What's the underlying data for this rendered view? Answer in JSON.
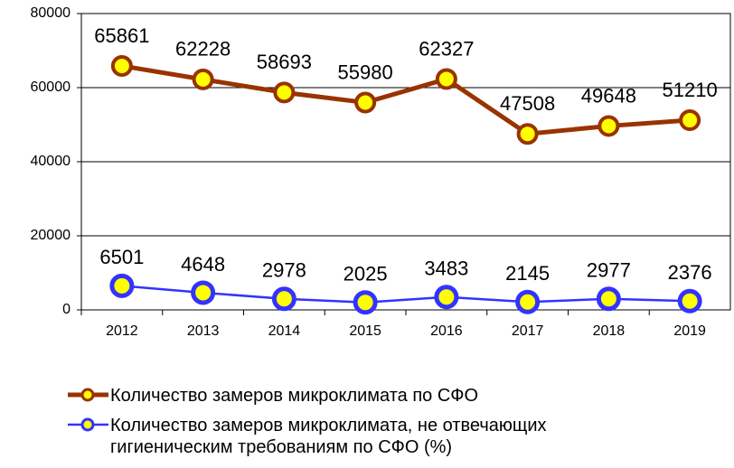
{
  "chart_data": {
    "type": "line",
    "categories": [
      "2012",
      "2013",
      "2014",
      "2015",
      "2016",
      "2017",
      "2018",
      "2019"
    ],
    "series": [
      {
        "name": "Количество замеров микроклимата по СФО",
        "color": "#993300",
        "marker_fill": "#ffff00",
        "values": [
          65861,
          62228,
          58693,
          55980,
          62327,
          47508,
          49648,
          51210
        ]
      },
      {
        "name": "Количество замеров микроклимата, не отвечающих гигиеническим  требованиям по СФО (%)",
        "color": "#3333ff",
        "marker_fill": "#ffff00",
        "values": [
          6501,
          4648,
          2978,
          2025,
          3483,
          2145,
          2977,
          2376
        ]
      }
    ],
    "ylim": [
      0,
      80000
    ],
    "yticks": [
      0,
      20000,
      40000,
      60000,
      80000
    ],
    "grid": true
  }
}
